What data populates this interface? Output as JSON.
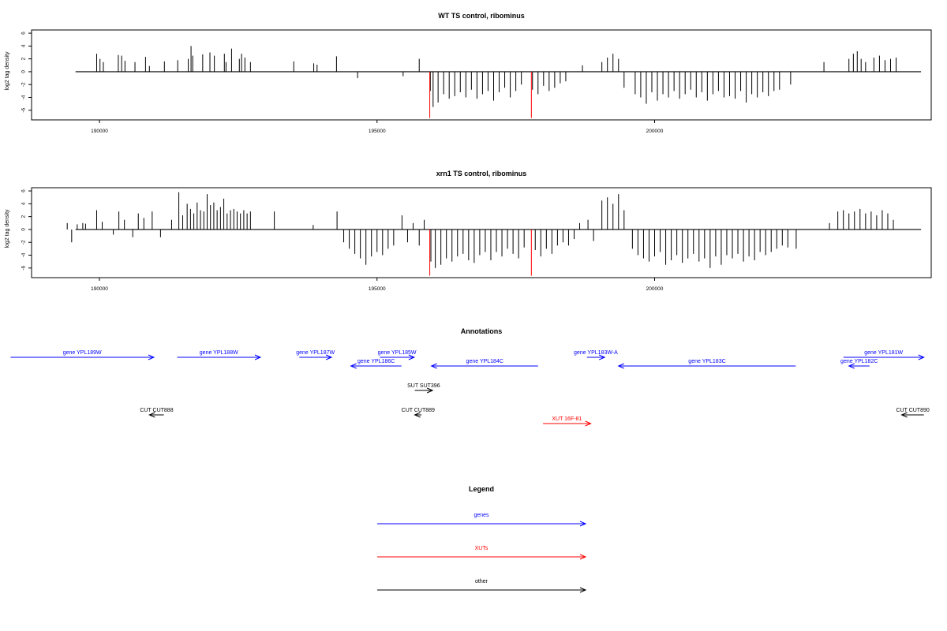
{
  "colors": {
    "genes": "#0000ff",
    "xuts": "#ff0000",
    "other": "#000000",
    "axis": "#000000"
  },
  "chart_data": [
    {
      "type": "bar",
      "title": "WT TS control, ribominus",
      "ylabel": "log2 tag density",
      "xlim": [
        189200,
        204500
      ],
      "ylim": [
        -7.5,
        6.5
      ],
      "yticks": [
        6,
        4,
        2,
        0,
        -2,
        -4,
        -6
      ],
      "xticks": [
        190000,
        195000,
        200000
      ],
      "baseline": 0,
      "series": [
        {
          "color": "#000000",
          "x": [
            189950,
            190010,
            190070,
            190340,
            190400,
            190460,
            190640,
            190830,
            190900,
            191170,
            191410,
            191600,
            191650,
            191680,
            191860,
            191990,
            192070,
            192250,
            192280,
            192380,
            192520,
            192560,
            192620,
            192720,
            193500,
            193860,
            193920,
            194270,
            194650,
            195470,
            195760,
            195960,
            196010,
            196100,
            196200,
            196300,
            196400,
            196500,
            196600,
            196700,
            196800,
            196900,
            197000,
            197100,
            197200,
            197300,
            197400,
            197500,
            197600,
            197800,
            197900,
            198000,
            198100,
            198200,
            198300,
            198400,
            198700,
            199050,
            199150,
            199250,
            199350,
            199450,
            199650,
            199750,
            199850,
            199950,
            200050,
            200150,
            200250,
            200350,
            200450,
            200550,
            200650,
            200750,
            200850,
            200950,
            201050,
            201150,
            201250,
            201350,
            201450,
            201550,
            201650,
            201750,
            201850,
            201950,
            202050,
            202150,
            202250,
            202450,
            203050,
            203500,
            203580,
            203650,
            203720,
            203800,
            203950,
            204050,
            204150,
            204250,
            204350
          ],
          "values": [
            2.8,
            2.0,
            1.5,
            2.6,
            2.5,
            1.7,
            1.5,
            2.3,
            0.9,
            1.6,
            1.8,
            2.0,
            4.0,
            2.5,
            2.7,
            3.0,
            2.5,
            2.8,
            1.5,
            3.6,
            2.0,
            2.8,
            2.2,
            1.5,
            1.6,
            1.3,
            1.1,
            2.4,
            -1.0,
            -0.7,
            2.0,
            -3.0,
            -5.5,
            -4.8,
            -3.5,
            -4.2,
            -3.8,
            -3.2,
            -4.0,
            -2.8,
            -4.2,
            -3.5,
            -3.0,
            -4.5,
            -3.2,
            -2.5,
            -4.0,
            -3.0,
            -2.0,
            -2.8,
            -3.5,
            -2.2,
            -3.0,
            -2.5,
            -1.8,
            -1.5,
            1.0,
            1.5,
            2.2,
            2.8,
            2.0,
            -2.5,
            -3.5,
            -4.0,
            -5.0,
            -3.2,
            -4.5,
            -3.5,
            -4.0,
            -3.0,
            -4.2,
            -3.5,
            -2.8,
            -4.0,
            -3.2,
            -4.5,
            -3.5,
            -3.0,
            -4.0,
            -3.8,
            -4.2,
            -3.0,
            -4.8,
            -3.5,
            -4.0,
            -3.2,
            -3.8,
            -3.0,
            -2.8,
            -2.0,
            1.5,
            2.0,
            2.8,
            3.2,
            2.0,
            1.5,
            2.2,
            2.5,
            1.8,
            2.0,
            2.2
          ]
        },
        {
          "color": "#ff0000",
          "x": [
            195950,
            197780
          ],
          "values": [
            -7.2,
            -7.2
          ]
        }
      ]
    },
    {
      "type": "bar",
      "title": "xrn1 TS control, ribominus",
      "ylabel": "log2 tag density",
      "xlim": [
        189200,
        204500
      ],
      "ylim": [
        -7.5,
        6.5
      ],
      "yticks": [
        6,
        4,
        2,
        0,
        -2,
        -4,
        -6
      ],
      "xticks": [
        190000,
        195000,
        200000
      ],
      "baseline": 0,
      "series": [
        {
          "color": "#000000",
          "x": [
            189420,
            189500,
            189600,
            189700,
            189750,
            189950,
            190050,
            190250,
            190350,
            190450,
            190600,
            190700,
            190800,
            190950,
            191100,
            191300,
            191430,
            191500,
            191580,
            191640,
            191700,
            191760,
            191820,
            191880,
            191940,
            192000,
            192060,
            192120,
            192180,
            192240,
            192300,
            192360,
            192420,
            192480,
            192540,
            192600,
            192660,
            192720,
            193150,
            193850,
            194280,
            194400,
            194500,
            194600,
            194700,
            194800,
            194900,
            195000,
            195100,
            195200,
            195300,
            195450,
            195550,
            195650,
            195760,
            195850,
            195970,
            196050,
            196150,
            196250,
            196350,
            196450,
            196550,
            196650,
            196750,
            196850,
            196950,
            197050,
            197150,
            197250,
            197350,
            197450,
            197550,
            197650,
            197850,
            197950,
            198050,
            198150,
            198250,
            198350,
            198450,
            198550,
            198650,
            198800,
            198900,
            199050,
            199150,
            199250,
            199350,
            199450,
            199600,
            199700,
            199800,
            199900,
            200000,
            200100,
            200200,
            200300,
            200400,
            200500,
            200600,
            200700,
            200800,
            200900,
            201000,
            201100,
            201200,
            201300,
            201400,
            201500,
            201600,
            201700,
            201800,
            201900,
            202000,
            202100,
            202200,
            202300,
            202400,
            202550,
            203150,
            203300,
            203400,
            203500,
            203600,
            203700,
            203800,
            203900,
            204000,
            204100,
            204200,
            204300
          ],
          "values": [
            1.0,
            -2.0,
            0.8,
            1.0,
            0.9,
            3.0,
            1.2,
            -0.8,
            2.8,
            1.5,
            -1.2,
            2.5,
            1.8,
            2.8,
            -1.2,
            1.5,
            5.8,
            2.2,
            4.0,
            3.2,
            2.5,
            4.2,
            3.0,
            2.8,
            5.5,
            3.8,
            4.2,
            3.0,
            3.5,
            4.8,
            2.5,
            3.0,
            3.2,
            2.8,
            2.5,
            3.0,
            2.5,
            2.8,
            2.8,
            0.7,
            2.8,
            -2.0,
            -3.0,
            -3.8,
            -4.5,
            -5.5,
            -4.2,
            -3.5,
            -4.0,
            -3.0,
            -2.5,
            2.2,
            -2.0,
            1.0,
            -2.5,
            1.5,
            -5.0,
            -6.0,
            -5.5,
            -4.5,
            -5.0,
            -4.2,
            -3.8,
            -4.8,
            -5.2,
            -4.0,
            -3.5,
            -4.8,
            -3.5,
            -4.2,
            -3.0,
            -3.8,
            -4.5,
            -2.8,
            -3.2,
            -4.2,
            -3.0,
            -3.8,
            -2.5,
            -2.0,
            -2.5,
            -1.5,
            1.0,
            1.5,
            -1.8,
            4.5,
            5.0,
            4.0,
            5.5,
            3.0,
            -3.0,
            -4.0,
            -4.5,
            -5.0,
            -4.2,
            -3.5,
            -5.5,
            -4.8,
            -4.0,
            -5.2,
            -4.5,
            -3.8,
            -5.0,
            -4.5,
            -6.0,
            -4.2,
            -5.5,
            -4.0,
            -4.5,
            -3.8,
            -5.0,
            -4.2,
            -4.8,
            -3.5,
            -4.0,
            -3.5,
            -3.0,
            -2.5,
            -2.8,
            -3.0,
            1.0,
            2.8,
            3.0,
            2.5,
            2.8,
            3.2,
            2.5,
            2.8,
            2.2,
            3.0,
            2.5,
            1.5
          ]
        },
        {
          "color": "#ff0000",
          "x": [
            195950,
            197780
          ],
          "values": [
            -7.2,
            -7.2
          ]
        }
      ]
    }
  ],
  "annotations": {
    "title": "Annotations",
    "features": [
      {
        "label": "gene YPL189W",
        "start": 188400,
        "end": 190980,
        "dir": "right",
        "kind": "genes"
      },
      {
        "label": "gene YPL188W",
        "start": 191400,
        "end": 192900,
        "dir": "right",
        "kind": "genes"
      },
      {
        "label": "gene YPL187W",
        "start": 193600,
        "end": 194180,
        "dir": "right",
        "kind": "genes"
      },
      {
        "label": "gene YPL185W",
        "start": 195050,
        "end": 195670,
        "dir": "right",
        "kind": "genes"
      },
      {
        "label": "gene YPL186C",
        "start": 194530,
        "end": 195440,
        "dir": "left",
        "kind": "genes"
      },
      {
        "label": "gene YPL184C",
        "start": 195980,
        "end": 197900,
        "dir": "left",
        "kind": "genes"
      },
      {
        "label": "gene YPL183W-A",
        "start": 198780,
        "end": 199100,
        "dir": "right",
        "kind": "genes"
      },
      {
        "label": "gene YPL183C",
        "start": 199350,
        "end": 202540,
        "dir": "left",
        "kind": "genes"
      },
      {
        "label": "gene YPL182C",
        "start": 203500,
        "end": 203870,
        "dir": "left",
        "kind": "genes"
      },
      {
        "label": "gene YPL181W",
        "start": 203400,
        "end": 204850,
        "dir": "right",
        "kind": "genes"
      },
      {
        "label": "SUT SUT396",
        "start": 195680,
        "end": 196000,
        "dir": "right",
        "kind": "other"
      },
      {
        "label": "CUT CUT888",
        "start": 190900,
        "end": 191160,
        "dir": "left",
        "kind": "other"
      },
      {
        "label": "CUT CUT889",
        "start": 195680,
        "end": 195800,
        "dir": "left",
        "kind": "other"
      },
      {
        "label": "CUT CUT890",
        "start": 204450,
        "end": 204850,
        "dir": "left",
        "kind": "other"
      },
      {
        "label": "XUT 16F-81",
        "start": 197990,
        "end": 198850,
        "dir": "right",
        "kind": "xuts"
      }
    ]
  },
  "legend": {
    "title": "Legend",
    "items": [
      {
        "label": "genes",
        "kind": "genes"
      },
      {
        "label": "XUTs",
        "kind": "xuts"
      },
      {
        "label": "other",
        "kind": "other"
      }
    ]
  }
}
